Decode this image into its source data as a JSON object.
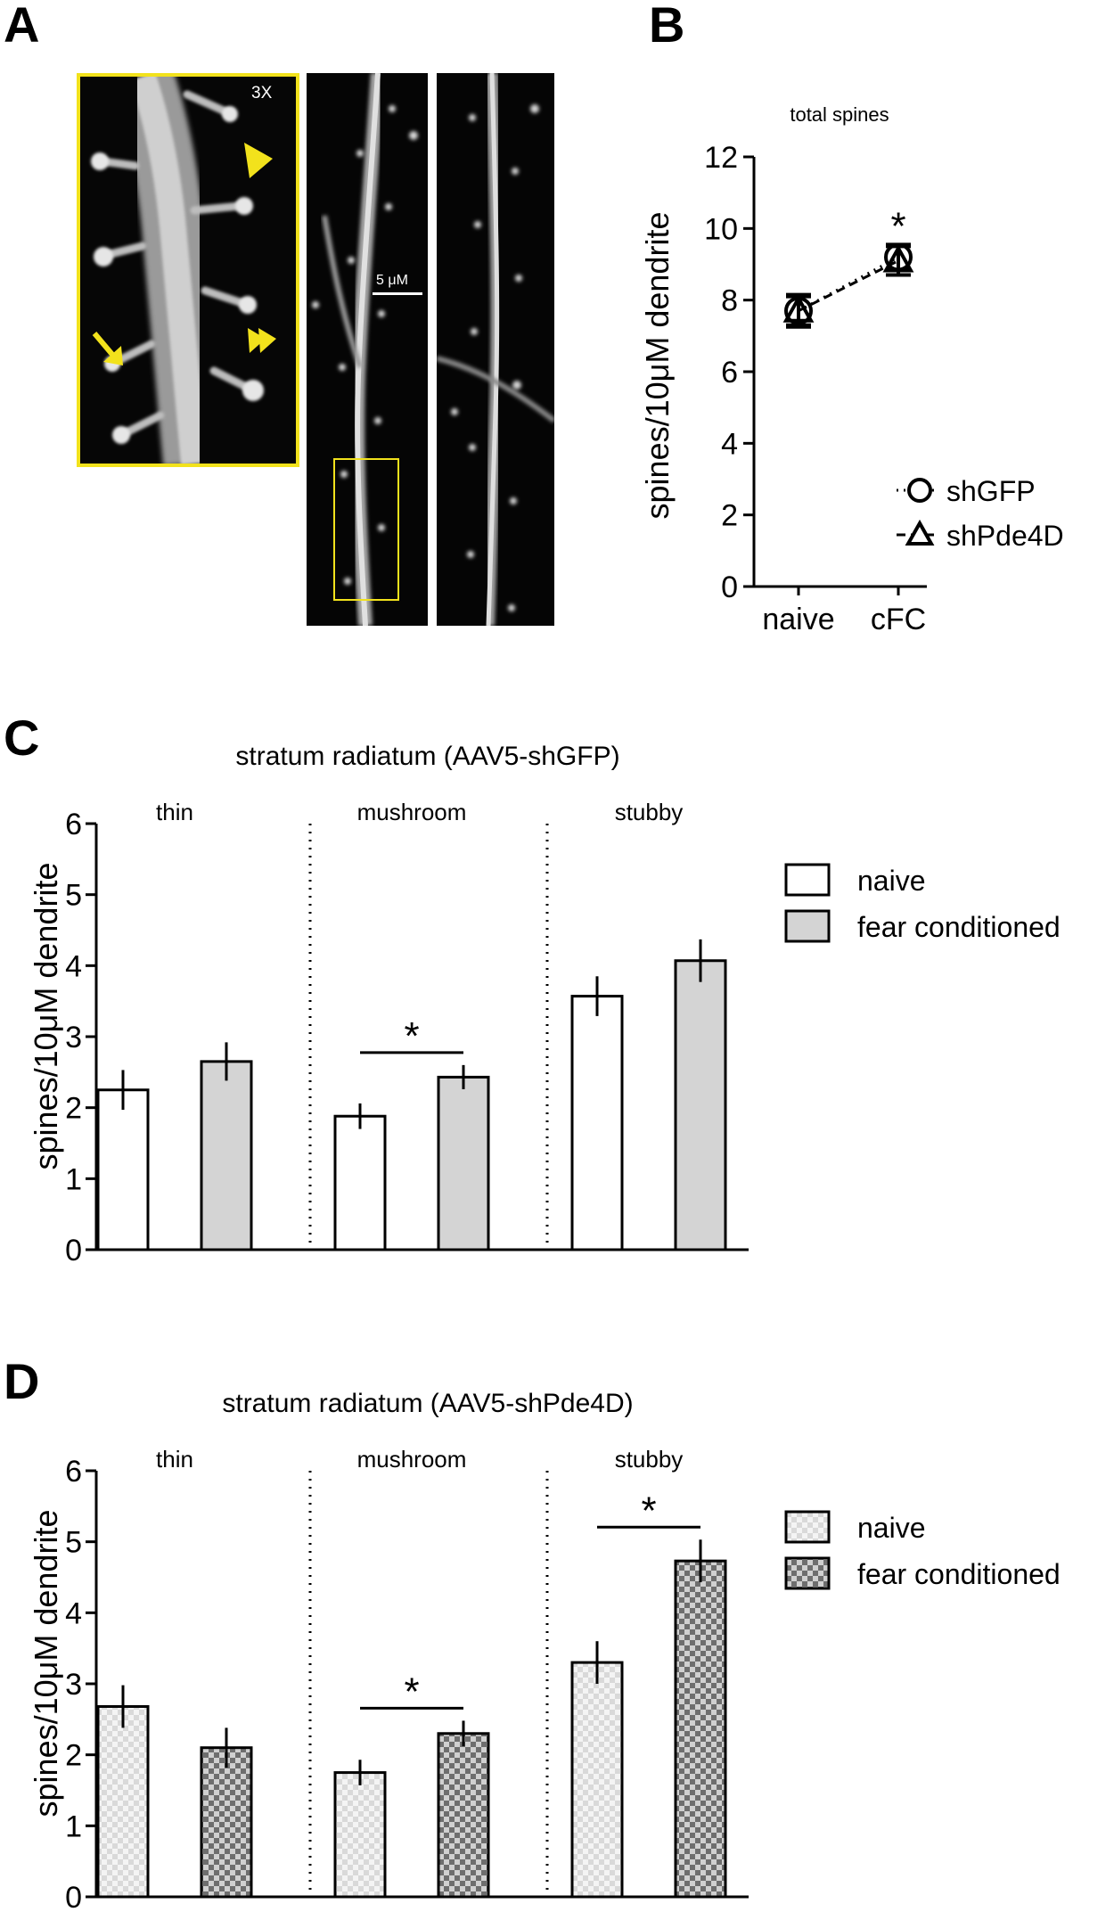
{
  "panels": {
    "a": {
      "letter": "A",
      "zoom_label": "3X",
      "scale_bar_label": "5 μM"
    },
    "b": {
      "letter": "B"
    },
    "c": {
      "letter": "C"
    },
    "d": {
      "letter": "D"
    }
  },
  "colors": {
    "highlight_yellow": "#f2e21c",
    "naive_fill_c": "#ffffff",
    "fear_fill_c": "#d4d4d4",
    "checker_light": "#d9d9d9",
    "checker_dark": "#6e6e6e"
  },
  "chart_data": [
    {
      "id": "B",
      "type": "scatter",
      "title": "total spines",
      "ylabel": "spines/10μM dendrite",
      "categories": [
        "naive",
        "cFC"
      ],
      "ylim": [
        0,
        12
      ],
      "yticks": [
        "0",
        "2",
        "4",
        "6",
        "8",
        "10",
        "12"
      ],
      "series": [
        {
          "name": "shGFP",
          "marker": "circle",
          "values": [
            7.7,
            9.2
          ],
          "error": [
            0.4,
            0.35
          ]
        },
        {
          "name": "shPde4D",
          "marker": "triangle",
          "values": [
            7.7,
            9.1
          ],
          "error": [
            0.45,
            0.4
          ]
        }
      ],
      "annotations": [
        {
          "category": "cFC",
          "text": "*"
        }
      ],
      "legend": "bottom-right"
    },
    {
      "id": "C",
      "type": "bar",
      "title": "stratum radiatum (AAV5-shGFP)",
      "ylabel": "spines/10μM dendrite",
      "groups": [
        "thin",
        "mushroom",
        "stubby"
      ],
      "ylim": [
        0,
        6
      ],
      "yticks": [
        "0",
        "1",
        "2",
        "3",
        "4",
        "5",
        "6"
      ],
      "series": [
        {
          "name": "naive",
          "values": [
            2.25,
            1.88,
            3.57
          ],
          "error": [
            0.28,
            0.18,
            0.28
          ]
        },
        {
          "name": "fear conditioned",
          "values": [
            2.65,
            2.43,
            4.07
          ],
          "error": [
            0.27,
            0.17,
            0.3
          ]
        }
      ],
      "significance": [
        {
          "group": "mushroom",
          "text": "*"
        }
      ],
      "legend": "top-right"
    },
    {
      "id": "D",
      "type": "bar",
      "title": "stratum radiatum (AAV5-shPde4D)",
      "ylabel": "spines/10μM dendrite",
      "groups": [
        "thin",
        "mushroom",
        "stubby"
      ],
      "ylim": [
        0,
        6
      ],
      "yticks": [
        "0",
        "1",
        "2",
        "3",
        "4",
        "5",
        "6"
      ],
      "series": [
        {
          "name": "naive",
          "values": [
            2.68,
            1.75,
            3.3
          ],
          "error": [
            0.3,
            0.18,
            0.3
          ]
        },
        {
          "name": "fear conditioned",
          "values": [
            2.1,
            2.3,
            4.73
          ],
          "error": [
            0.28,
            0.18,
            0.3
          ]
        }
      ],
      "significance": [
        {
          "group": "mushroom",
          "text": "*"
        },
        {
          "group": "stubby",
          "text": "*"
        }
      ],
      "legend": "top-right"
    }
  ]
}
